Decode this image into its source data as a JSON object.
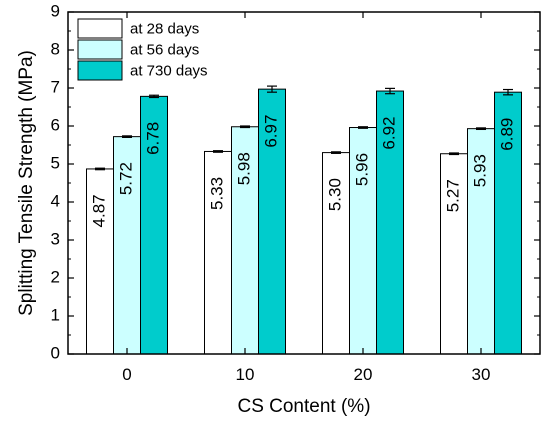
{
  "chart_data": {
    "type": "bar",
    "title": "",
    "xlabel": "CS Content (%)",
    "ylabel": "Splitting Tensile Strength (MPa)",
    "categories": [
      "0",
      "10",
      "20",
      "30"
    ],
    "ylim": [
      0,
      9
    ],
    "yticks": [
      "0",
      "1",
      "2",
      "3",
      "4",
      "5",
      "6",
      "7",
      "8",
      "9"
    ],
    "grid": false,
    "legend_position": "top-left",
    "series": [
      {
        "name": "at 28 days",
        "color": "#ffffff",
        "values": [
          4.87,
          5.33,
          5.3,
          5.27
        ],
        "errors": [
          0.02,
          0.02,
          0.02,
          0.02
        ],
        "labels": [
          "4.87",
          "5.33",
          "5.30",
          "5.27"
        ]
      },
      {
        "name": "at 56 days",
        "color": "#ccffff",
        "values": [
          5.72,
          5.98,
          5.96,
          5.93
        ],
        "errors": [
          0.02,
          0.02,
          0.02,
          0.02
        ],
        "labels": [
          "5.72",
          "5.98",
          "5.96",
          "5.93"
        ]
      },
      {
        "name": "at 730 days",
        "color": "#00cccc",
        "values": [
          6.78,
          6.97,
          6.92,
          6.89
        ],
        "errors": [
          0.03,
          0.08,
          0.07,
          0.07
        ],
        "labels": [
          "6.78",
          "6.97",
          "6.92",
          "6.89"
        ]
      }
    ]
  }
}
